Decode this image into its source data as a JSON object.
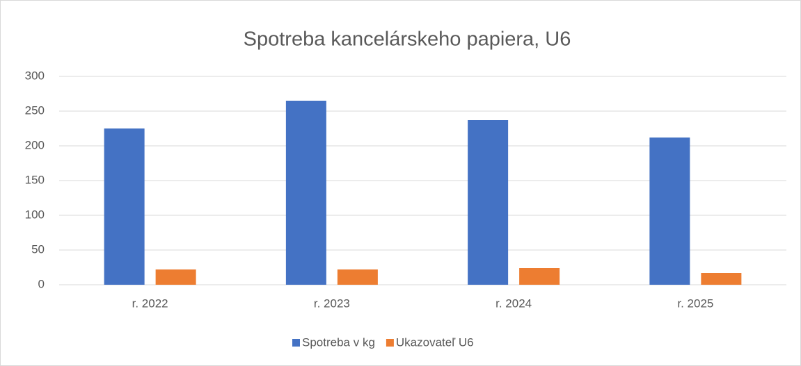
{
  "chart_data": {
    "type": "bar",
    "title": "Spotreba kancelárskeho papiera, U6",
    "categories": [
      "r. 2022",
      "r. 2023",
      "r. 2024",
      "r. 2025"
    ],
    "series": [
      {
        "name": "Spotreba v kg",
        "color": "#4472c4",
        "values": [
          225,
          265,
          237,
          212
        ]
      },
      {
        "name": "Ukazovateľ U6",
        "color": "#ed7d31",
        "values": [
          22,
          22,
          24,
          17
        ]
      }
    ],
    "ylim": [
      0,
      300
    ],
    "yticks": [
      0,
      50,
      100,
      150,
      200,
      250,
      300
    ],
    "grid": true,
    "legend": "bottom"
  }
}
